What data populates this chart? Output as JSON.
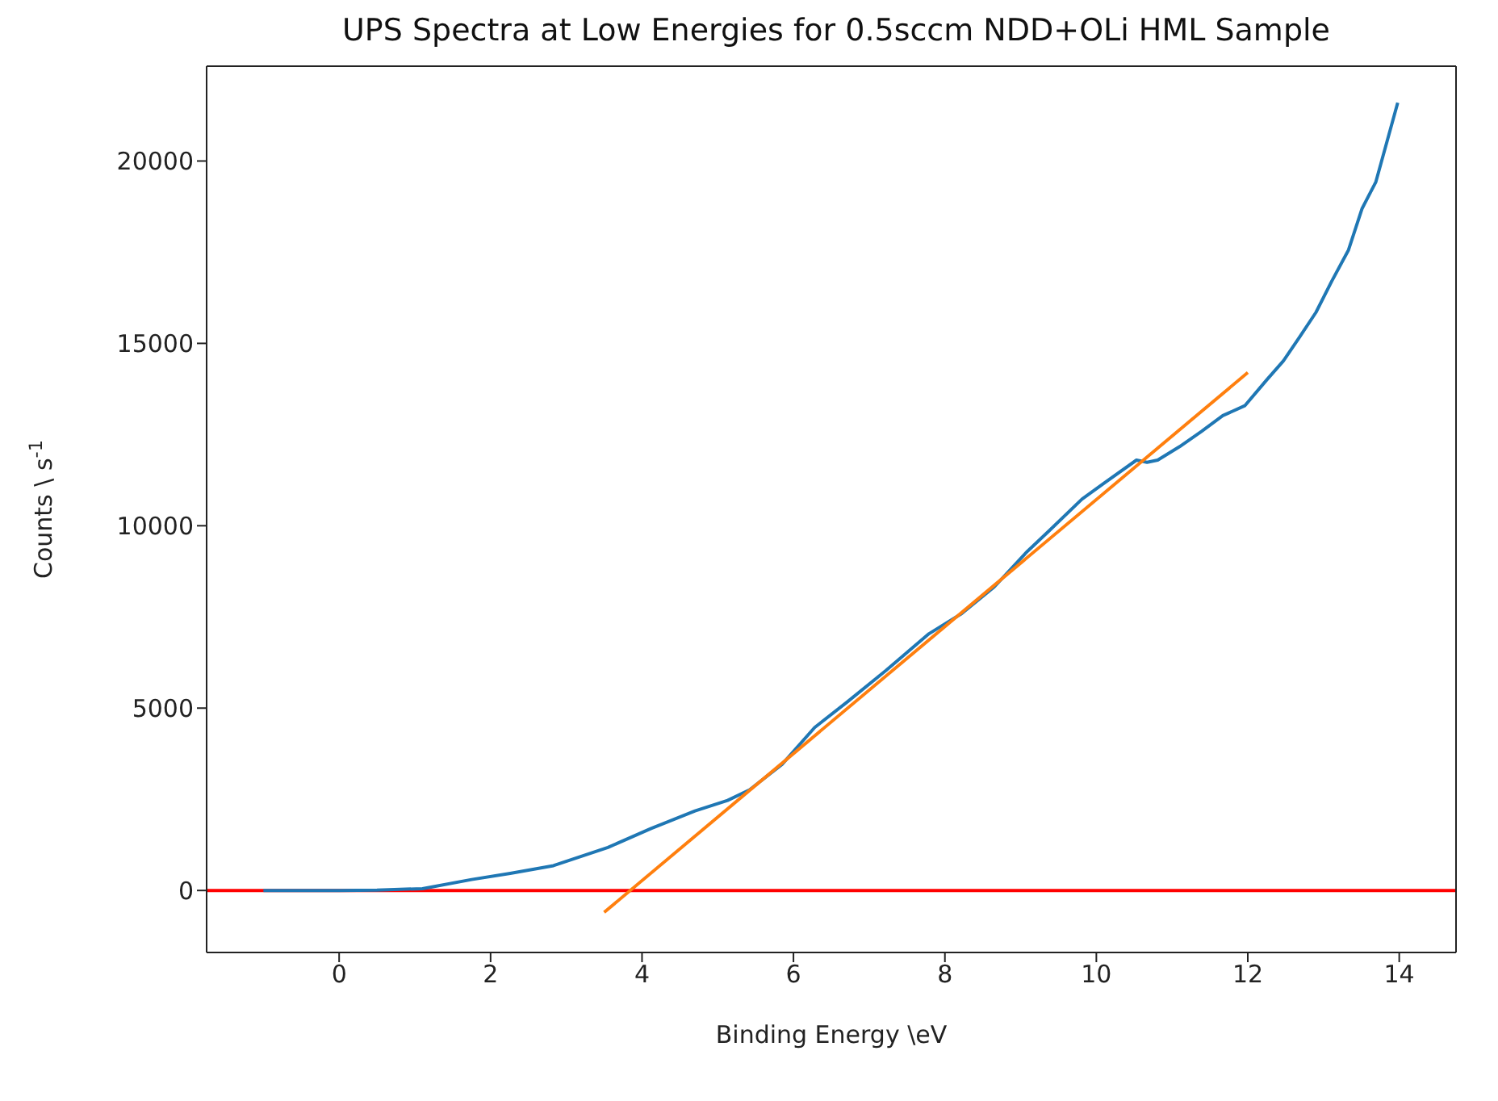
{
  "chart_data": {
    "type": "line",
    "title": "UPS Spectra at Low Energies for 0.5sccm NDD+OLi HML Sample",
    "xlabel": "Binding Energy \\eV",
    "ylabel": "Counts \\ s$^{-1}$",
    "series": [
      {
        "color": "#1f77b4",
        "x": [
          -1,
          0,
          0.5,
          1.1,
          1.75,
          2.26,
          2.83,
          3.55,
          4.12,
          4.7,
          5.13,
          5.42,
          5.85,
          6.28,
          6.71,
          7.22,
          7.79,
          8.22,
          8.65,
          9.09,
          9.38,
          9.81,
          10.09,
          10.53,
          10.67,
          10.81,
          11.1,
          11.39,
          11.67,
          11.96,
          12.25,
          12.47,
          12.68,
          12.9,
          13.11,
          13.33,
          13.51,
          13.69,
          13.98
        ],
        "values": [
          0,
          0,
          10,
          50,
          300,
          470,
          680,
          1180,
          1700,
          2180,
          2470,
          2760,
          3460,
          4470,
          5170,
          6030,
          7040,
          7590,
          8320,
          9300,
          9870,
          10730,
          11150,
          11800,
          11740,
          11800,
          12170,
          12590,
          13020,
          13290,
          14000,
          14520,
          15160,
          15850,
          16710,
          17560,
          18700,
          19420,
          21600
        ]
      },
      {
        "color": "#ff7f0e",
        "x": [
          3.5,
          12
        ],
        "values": [
          -600,
          14200
        ]
      }
    ],
    "xlim": [
      -1.75,
      14.75
    ],
    "xticks": [
      0,
      2,
      4,
      6,
      8,
      10,
      12,
      14
    ],
    "ylim": [
      -1700,
      22600
    ],
    "yticks": [
      0,
      5000,
      10000,
      15000,
      20000
    ],
    "ref_lines": [
      {
        "axis": "y",
        "value": 0,
        "color": "#ff0000"
      }
    ],
    "grid": false,
    "legend": false
  }
}
